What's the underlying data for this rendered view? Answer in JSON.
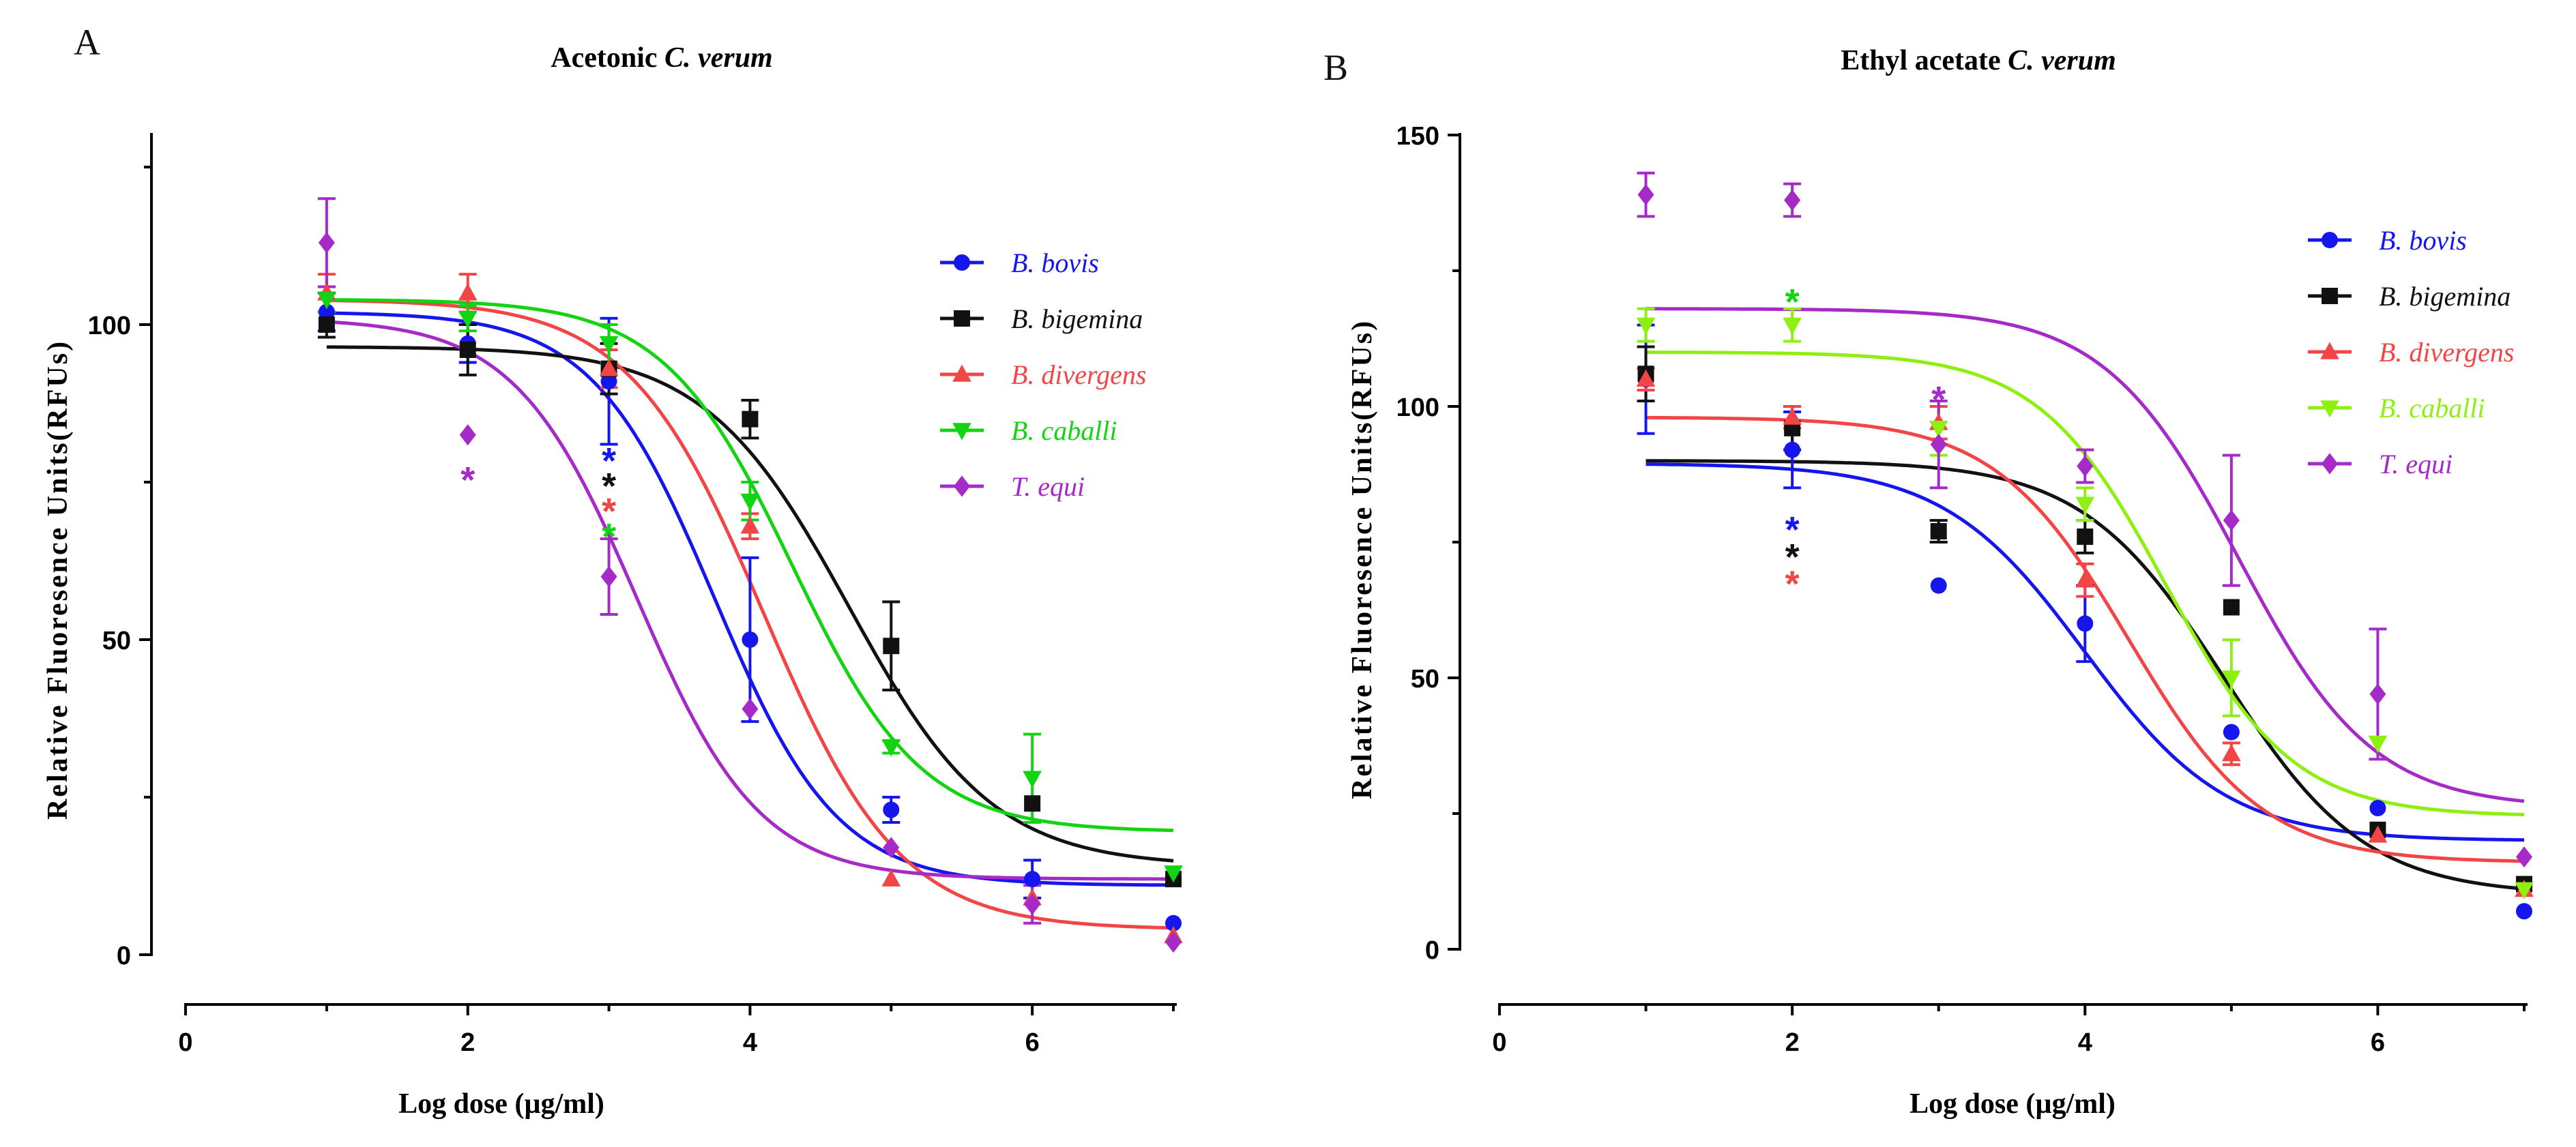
{
  "chart_data": [
    {
      "type": "scatter",
      "panel_letter": "A",
      "title_prefix": "Acetonic ",
      "title_italic": "C. verum",
      "xlabel": "Log dose (µg/ml)",
      "ylabel": "Relative Fluoresence Units(RFUs)",
      "xlim": [
        0,
        7
      ],
      "ylim": [
        0,
        125
      ],
      "xticks": [
        0,
        2,
        4,
        6
      ],
      "yticks": [
        0,
        50,
        100
      ],
      "x": [
        1,
        2,
        3,
        4,
        5,
        6,
        7
      ],
      "series": [
        {
          "name": "B. bovis",
          "color": "#1515ee",
          "marker": "circle",
          "values": [
            102,
            97,
            91,
            50,
            23,
            12,
            5
          ],
          "errors": [
            3,
            3,
            10,
            13,
            2,
            3,
            0
          ],
          "fit": {
            "top": 102,
            "bottom": 11,
            "logEC50": 3.75,
            "hill": 1.0
          }
        },
        {
          "name": "B. bigemina",
          "color": "#111111",
          "marker": "square",
          "values": [
            100,
            96,
            93,
            85,
            49,
            24,
            12
          ],
          "errors": [
            2,
            4,
            4,
            3,
            7,
            0,
            0
          ],
          "fit": {
            "top": 96.5,
            "bottom": 14,
            "logEC50": 4.7,
            "hill": 0.85
          }
        },
        {
          "name": "B. divergens",
          "color": "#f24545",
          "marker": "triangle-up",
          "values": [
            105,
            105,
            93,
            68,
            12,
            9,
            3
          ],
          "errors": [
            3,
            3,
            3,
            2,
            0,
            0,
            0
          ],
          "fit": {
            "top": 104,
            "bottom": 4,
            "logEC50": 4.1,
            "hill": 0.9
          }
        },
        {
          "name": "B. caballi",
          "color": "#12d412",
          "marker": "triangle-down",
          "values": [
            104,
            101,
            97,
            72,
            33,
            28,
            13
          ],
          "errors": [
            2,
            2,
            3,
            3,
            1,
            7,
            0
          ],
          "fit": {
            "top": 104,
            "bottom": 19.5,
            "logEC50": 4.3,
            "hill": 0.95
          }
        },
        {
          "name": "T. equi",
          "color": "#a52ac8",
          "marker": "diamond",
          "values": [
            113,
            82.5,
            60,
            39,
            17,
            8,
            2
          ],
          "errors": [
            7,
            0,
            6,
            0,
            0,
            3,
            0
          ],
          "fit": {
            "top": 101,
            "bottom": 12,
            "logEC50": 3.2,
            "hill": 1.0
          }
        }
      ],
      "annotations": [
        {
          "text": "*",
          "x": 2,
          "y": 76,
          "color": "#a52ac8"
        },
        {
          "text": "*",
          "x": 3,
          "y": 79,
          "color": "#1515ee"
        },
        {
          "text": "*",
          "x": 3,
          "y": 75,
          "color": "#111111"
        },
        {
          "text": "*",
          "x": 3,
          "y": 71,
          "color": "#f24545"
        },
        {
          "text": "*",
          "x": 3,
          "y": 67,
          "color": "#12d412"
        }
      ],
      "legend_position": "top-right"
    },
    {
      "type": "scatter",
      "panel_letter": "B",
      "title_prefix": "Ethyl acetate ",
      "title_italic": "C. verum",
      "xlabel": "Log dose (µg/ml)",
      "ylabel": "Relative Fluoresence Units(RFUs)",
      "xlim": [
        0,
        7
      ],
      "ylim": [
        0,
        150
      ],
      "xticks": [
        0,
        2,
        4,
        6
      ],
      "yticks": [
        0,
        50,
        100,
        150
      ],
      "x": [
        1,
        2,
        3,
        4,
        5,
        6,
        7
      ],
      "series": [
        {
          "name": "B. bovis",
          "color": "#1515ee",
          "marker": "circle",
          "values": [
            105,
            92,
            67,
            60,
            40,
            26,
            7
          ],
          "errors": [
            10,
            7,
            0,
            7,
            0,
            0,
            0
          ],
          "fit": {
            "top": 89.5,
            "bottom": 20,
            "logEC50": 4.0,
            "hill": 0.9
          }
        },
        {
          "name": "B. bigemina",
          "color": "#111111",
          "marker": "square",
          "values": [
            106,
            96,
            77,
            76,
            63,
            22,
            12
          ],
          "errors": [
            5,
            4,
            2,
            3,
            0,
            0,
            0
          ],
          "fit": {
            "top": 90,
            "bottom": 10,
            "logEC50": 4.95,
            "hill": 0.9
          }
        },
        {
          "name": "B. divergens",
          "color": "#f24545",
          "marker": "triangle-up",
          "values": [
            105,
            98,
            97,
            68,
            36,
            21,
            11
          ],
          "errors": [
            2,
            2,
            3,
            3,
            2,
            0,
            0
          ],
          "fit": {
            "top": 98,
            "bottom": 16,
            "logEC50": 4.3,
            "hill": 0.95
          }
        },
        {
          "name": "B. caballi",
          "color": "#8ef010",
          "marker": "triangle-down",
          "values": [
            115,
            115,
            96,
            82,
            50,
            38,
            11
          ],
          "errors": [
            3,
            3,
            5,
            3,
            7,
            0,
            0
          ],
          "fit": {
            "top": 110,
            "bottom": 24.5,
            "logEC50": 4.55,
            "hill": 1.0
          }
        },
        {
          "name": "T. equi",
          "color": "#a52ac8",
          "marker": "diamond",
          "values": [
            139,
            138,
            93,
            89,
            79,
            47,
            17
          ],
          "errors": [
            4,
            3,
            8,
            3,
            12,
            12,
            0
          ],
          "fit": {
            "top": 118,
            "bottom": 26,
            "logEC50": 5.05,
            "hill": 0.95
          }
        }
      ],
      "annotations": [
        {
          "text": "*",
          "x": 2,
          "y": 120,
          "color": "#12d412"
        },
        {
          "text": "*",
          "x": 2,
          "y": 78,
          "color": "#1515ee"
        },
        {
          "text": "*",
          "x": 2,
          "y": 73,
          "color": "#111111"
        },
        {
          "text": "*",
          "x": 2,
          "y": 68,
          "color": "#f24545"
        },
        {
          "text": "*",
          "x": 3,
          "y": 102,
          "color": "#a52ac8"
        }
      ],
      "legend_position": "top-right"
    }
  ]
}
